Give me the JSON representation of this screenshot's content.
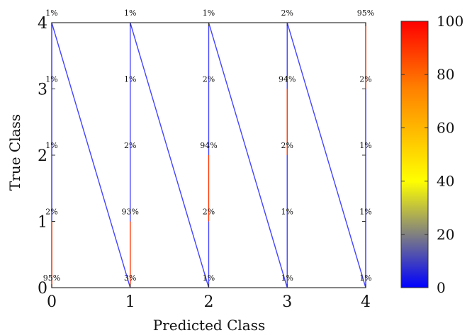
{
  "chart_data": {
    "type": "heatmap",
    "title": "",
    "xlabel": "Predicted Class",
    "ylabel": "True Class",
    "x_ticks": [
      "0",
      "1",
      "2",
      "3",
      "4"
    ],
    "y_ticks": [
      "0",
      "1",
      "2",
      "3",
      "4"
    ],
    "xlim": [
      0,
      4
    ],
    "ylim": [
      0,
      4
    ],
    "grid": false,
    "cells": [
      {
        "true": 0,
        "pred": 0,
        "value": 95,
        "label": "95%"
      },
      {
        "true": 0,
        "pred": 1,
        "value": 3,
        "label": "3%"
      },
      {
        "true": 0,
        "pred": 2,
        "value": 1,
        "label": "1%"
      },
      {
        "true": 0,
        "pred": 3,
        "value": 1,
        "label": "1%"
      },
      {
        "true": 0,
        "pred": 4,
        "value": 1,
        "label": "1%"
      },
      {
        "true": 1,
        "pred": 0,
        "value": 2,
        "label": "2%"
      },
      {
        "true": 1,
        "pred": 1,
        "value": 93,
        "label": "93%"
      },
      {
        "true": 1,
        "pred": 2,
        "value": 2,
        "label": "2%"
      },
      {
        "true": 1,
        "pred": 3,
        "value": 1,
        "label": "1%"
      },
      {
        "true": 1,
        "pred": 4,
        "value": 1,
        "label": "1%"
      },
      {
        "true": 2,
        "pred": 0,
        "value": 1,
        "label": "1%"
      },
      {
        "true": 2,
        "pred": 1,
        "value": 2,
        "label": "2%"
      },
      {
        "true": 2,
        "pred": 2,
        "value": 94,
        "label": "94%"
      },
      {
        "true": 2,
        "pred": 3,
        "value": 2,
        "label": "2%"
      },
      {
        "true": 2,
        "pred": 4,
        "value": 1,
        "label": "1%"
      },
      {
        "true": 3,
        "pred": 0,
        "value": 1,
        "label": "1%"
      },
      {
        "true": 3,
        "pred": 1,
        "value": 1,
        "label": "1%"
      },
      {
        "true": 3,
        "pred": 2,
        "value": 2,
        "label": "2%"
      },
      {
        "true": 3,
        "pred": 3,
        "value": 94,
        "label": "94%"
      },
      {
        "true": 3,
        "pred": 4,
        "value": 2,
        "label": "2%"
      },
      {
        "true": 4,
        "pred": 0,
        "value": 1,
        "label": "1%"
      },
      {
        "true": 4,
        "pred": 1,
        "value": 1,
        "label": "1%"
      },
      {
        "true": 4,
        "pred": 2,
        "value": 1,
        "label": "1%"
      },
      {
        "true": 4,
        "pred": 3,
        "value": 2,
        "label": "2%"
      },
      {
        "true": 4,
        "pred": 4,
        "value": 95,
        "label": "95%"
      }
    ],
    "colorbar": {
      "min": 0,
      "max": 100,
      "ticks": [
        "0",
        "20",
        "40",
        "60",
        "80",
        "100"
      ],
      "colors": [
        "#0000ff",
        "#808080",
        "#ffff00",
        "#ff8000",
        "#ff0000"
      ]
    },
    "line_color_low": "#4444ff",
    "line_color_high": "#ff3300",
    "frame_color": "#333333"
  }
}
